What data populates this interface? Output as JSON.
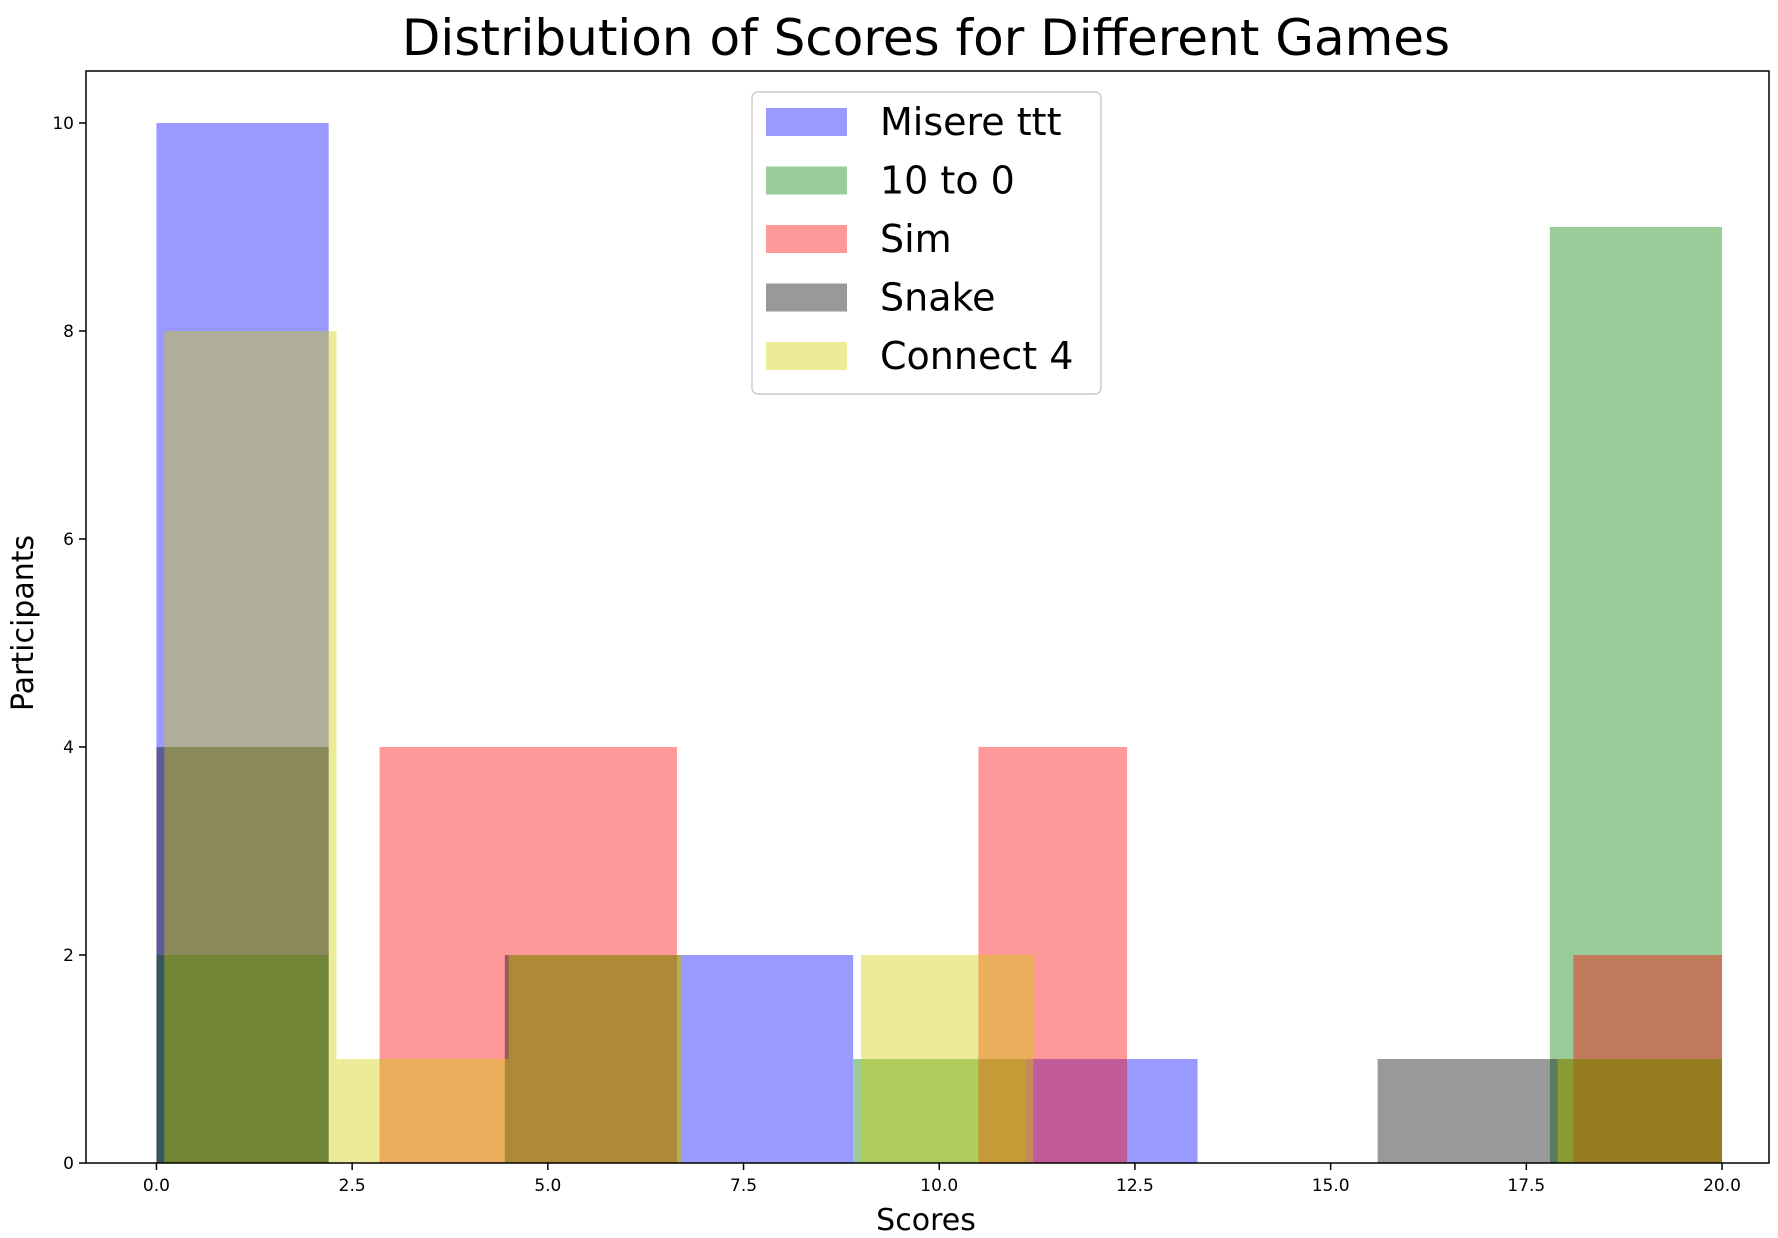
{
  "chart_data": {
    "type": "bar",
    "title": "Distribution of Scores for Different Games",
    "xlabel": "Scores",
    "ylabel": "Participants",
    "xlim": [
      -0.9,
      20.6
    ],
    "ylim": [
      0,
      10.5
    ],
    "xticks": [
      "0.0",
      "2.5",
      "5.0",
      "7.5",
      "10.0",
      "12.5",
      "15.0",
      "17.5",
      "20.0"
    ],
    "xtick_values": [
      0,
      2.5,
      5,
      7.5,
      10,
      12.5,
      15,
      17.5,
      20
    ],
    "yticks": [
      "0",
      "2",
      "4",
      "6",
      "8",
      "10"
    ],
    "ytick_values": [
      0,
      2,
      4,
      6,
      8,
      10
    ],
    "legend_position": "top-center",
    "alpha": 0.4,
    "series": [
      {
        "name": "Misere ttt",
        "color": "#0000ff",
        "bins": [
          {
            "x0": 0.0,
            "x1": 2.2,
            "count": 10
          },
          {
            "x0": 6.7,
            "x1": 8.9,
            "count": 2
          },
          {
            "x0": 11.1,
            "x1": 13.3,
            "count": 1
          }
        ]
      },
      {
        "name": "10 to 0",
        "color": "#008000",
        "bins": [
          {
            "x0": 0.0,
            "x1": 2.2,
            "count": 2
          },
          {
            "x0": 8.9,
            "x1": 11.1,
            "count": 1
          },
          {
            "x0": 17.8,
            "x1": 20.0,
            "count": 9
          }
        ]
      },
      {
        "name": "Sim",
        "color": "#ff0000",
        "bins": [
          {
            "x0": 2.85,
            "x1": 6.65,
            "count": 4
          },
          {
            "x0": 10.5,
            "x1": 12.4,
            "count": 4
          },
          {
            "x0": 18.1,
            "x1": 20.0,
            "count": 2
          }
        ]
      },
      {
        "name": "Snake",
        "color": "#000000",
        "bins": [
          {
            "x0": 0.0,
            "x1": 2.2,
            "count": 4
          },
          {
            "x0": 4.45,
            "x1": 6.7,
            "count": 2
          },
          {
            "x0": 15.6,
            "x1": 17.8,
            "count": 1
          },
          {
            "x0": 17.8,
            "x1": 20.0,
            "count": 1
          }
        ]
      },
      {
        "name": "Connect 4",
        "color": "#cccc00",
        "bins": [
          {
            "x0": 0.1,
            "x1": 2.3,
            "count": 8
          },
          {
            "x0": 2.3,
            "x1": 4.5,
            "count": 1
          },
          {
            "x0": 4.5,
            "x1": 6.7,
            "count": 2
          },
          {
            "x0": 9.0,
            "x1": 11.2,
            "count": 2
          },
          {
            "x0": 17.9,
            "x1": 20.0,
            "count": 1
          }
        ]
      }
    ]
  }
}
